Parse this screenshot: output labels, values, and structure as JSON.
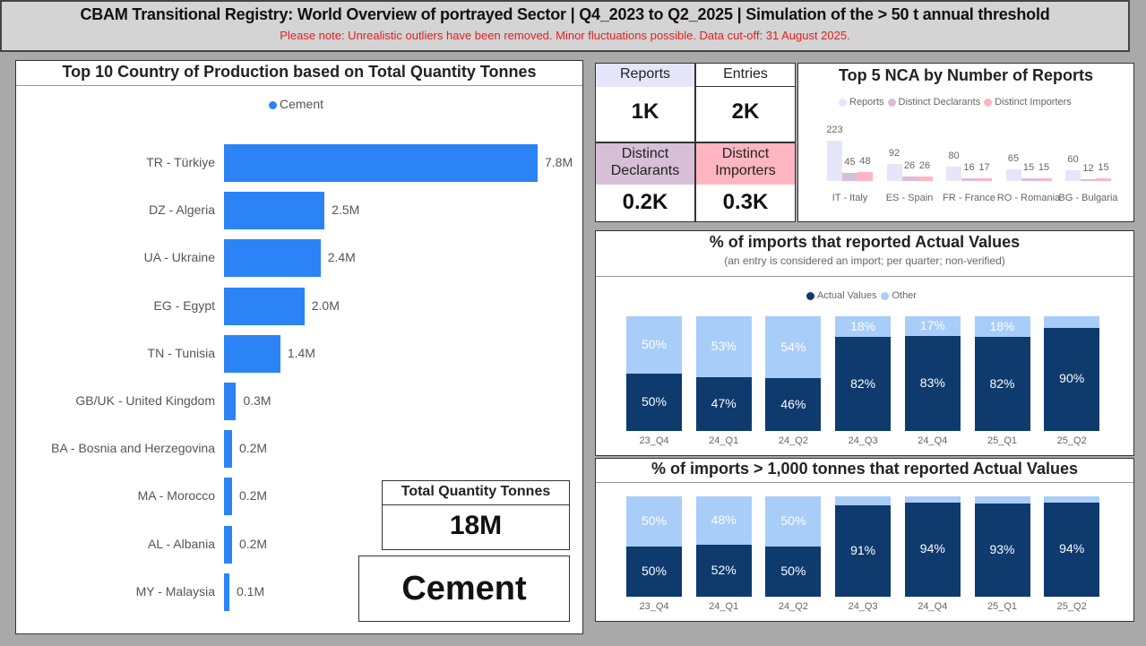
{
  "header": {
    "title": "CBAM Transitional Registry: World Overview of portrayed Sector | Q4_2023 to Q2_2025 | Simulation of the > 50 t annual threshold",
    "note": "Please note: Unrealistic outliers have been removed. Minor fluctuations possible. Data cut-off: 31 August 2025."
  },
  "kpis": {
    "reports": {
      "label": "Reports",
      "value": "1K",
      "color": "#e6e6fa"
    },
    "entries": {
      "label": "Entries",
      "value": "2K",
      "color": "#ffffff"
    },
    "declarants": {
      "label": "Distinct Declarants",
      "value": "0.2K",
      "color": "#d8bfd8"
    },
    "importers": {
      "label": "Distinct Importers",
      "value": "0.3K",
      "color": "#ffb6c1"
    },
    "total": {
      "label": "Total Quantity Tonnes",
      "value": "18M"
    },
    "sector": {
      "value": "Cement"
    }
  },
  "chart_data": [
    {
      "type": "bar",
      "orientation": "horizontal",
      "title": "Top 10 Country of Production based on Total Quantity Tonnes",
      "legend": [
        "Cement"
      ],
      "color": "#2b83f6",
      "categories": [
        "TR - Türkiye",
        "DZ - Algeria",
        "UA - Ukraine",
        "EG - Egypt",
        "TN - Tunisia",
        "GB/UK - United Kingdom",
        "BA - Bosnia and Herzegovina",
        "MA - Morocco",
        "AL - Albania",
        "MY - Malaysia"
      ],
      "values": [
        7.8,
        2.5,
        2.4,
        2.0,
        1.4,
        0.3,
        0.2,
        0.2,
        0.2,
        0.1
      ],
      "labels": [
        "7.8M",
        "2.5M",
        "2.4M",
        "2.0M",
        "1.4M",
        "0.3M",
        "0.2M",
        "0.2M",
        "0.2M",
        "0.1M"
      ],
      "unit": "M tonnes"
    },
    {
      "type": "bar",
      "title": "Top 5 NCA by Number of Reports",
      "categories": [
        "IT - Italy",
        "ES - Spain",
        "FR - France",
        "RO - Romania",
        "BG - Bulgaria"
      ],
      "series": [
        {
          "name": "Reports",
          "color": "#e6e6fa",
          "values": [
            223,
            92,
            80,
            65,
            60
          ]
        },
        {
          "name": "Distinct Declarants",
          "color": "#d8bfd8",
          "values": [
            45,
            26,
            16,
            15,
            12
          ]
        },
        {
          "name": "Distinct Importers",
          "color": "#ffb6c1",
          "values": [
            48,
            26,
            17,
            15,
            15
          ]
        }
      ]
    },
    {
      "type": "bar",
      "stacked": true,
      "title": "% of imports that reported Actual Values",
      "subtitle": "(an entry is considered an import; per quarter; non-verified)",
      "categories": [
        "23_Q4",
        "24_Q1",
        "24_Q2",
        "24_Q3",
        "24_Q4",
        "25_Q1",
        "25_Q2"
      ],
      "series": [
        {
          "name": "Actual Values",
          "color": "#0e3a6e",
          "values": [
            50,
            47,
            46,
            82,
            83,
            82,
            90
          ]
        },
        {
          "name": "Other",
          "color": "#a8cdf8",
          "values": [
            50,
            53,
            54,
            18,
            17,
            18,
            10
          ],
          "labels": [
            "50%",
            "53%",
            "54%",
            "18%",
            "17%",
            "18%",
            ""
          ]
        }
      ]
    },
    {
      "type": "bar",
      "stacked": true,
      "title": "% of imports > 1,000 tonnes that reported Actual Values",
      "categories": [
        "23_Q4",
        "24_Q1",
        "24_Q2",
        "24_Q3",
        "24_Q4",
        "25_Q1",
        "25_Q2"
      ],
      "series": [
        {
          "name": "Actual Values",
          "color": "#0e3a6e",
          "values": [
            50,
            52,
            50,
            91,
            94,
            93,
            94
          ]
        },
        {
          "name": "Other",
          "color": "#a8cdf8",
          "values": [
            50,
            48,
            50,
            9,
            6,
            7,
            6
          ],
          "labels": [
            "50%",
            "48%",
            "50%",
            "",
            "",
            "",
            ""
          ]
        }
      ]
    }
  ]
}
